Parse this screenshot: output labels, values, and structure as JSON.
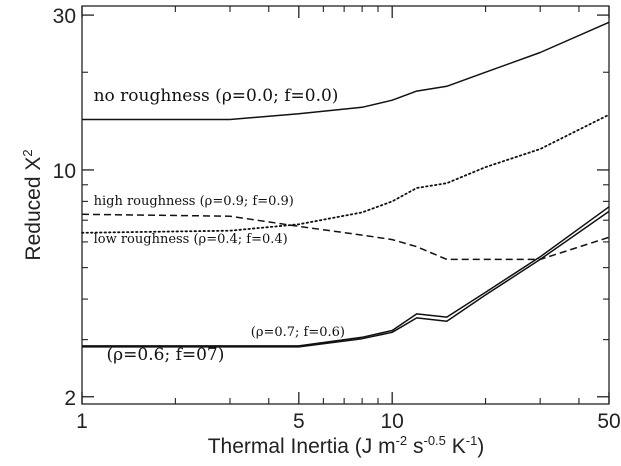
{
  "chart_data": {
    "type": "line",
    "title": "",
    "xlabel": "Thermal Inertia (J m",
    "xlabel_parts": {
      "base": "Thermal Inertia (J m",
      "sup1": "-2",
      "mid1": " s",
      "sup2": "-0.5",
      "mid2": " K",
      "sup3": "-1",
      "end": ")"
    },
    "ylabel_parts": {
      "base": "Reduced X",
      "sup": "2"
    },
    "x_scale": "log",
    "y_scale": "log",
    "xlim": [
      1,
      50
    ],
    "ylim": [
      1.9,
      32
    ],
    "x_ticks": [
      {
        "value": 1,
        "label": "1"
      },
      {
        "value": 5,
        "label": "5"
      },
      {
        "value": 10,
        "label": "10"
      },
      {
        "value": 50,
        "label": "50"
      }
    ],
    "x_minor_ticks": [
      2,
      3,
      4,
      6,
      7,
      8,
      9,
      20,
      30,
      40
    ],
    "y_ticks": [
      {
        "value": 2,
        "label": "2"
      },
      {
        "value": 10,
        "label": "10"
      },
      {
        "value": 30,
        "label": "30"
      }
    ],
    "y_minor_ticks": [
      3,
      4,
      5,
      6,
      7,
      8,
      9,
      20
    ],
    "grid": false,
    "series": [
      {
        "name": "no roughness (ρ=0.0; f=0.0)",
        "style": "solid",
        "x": [
          1,
          3,
          5,
          8,
          10,
          12,
          15,
          20,
          30,
          50
        ],
        "y": [
          14.3,
          14.3,
          14.9,
          15.6,
          16.4,
          17.5,
          18.1,
          20.0,
          23.0,
          28.5
        ]
      },
      {
        "name": "high roughness (ρ=0.9; f=0.9)",
        "style": "dashed",
        "x": [
          1,
          3,
          5,
          8,
          10,
          12,
          15,
          20,
          30,
          50
        ],
        "y": [
          7.3,
          7.2,
          6.7,
          6.3,
          6.1,
          5.8,
          5.3,
          5.3,
          5.3,
          6.2
        ]
      },
      {
        "name": "low roughness (ρ=0.4; f=0.4)",
        "style": "dotted",
        "x": [
          1,
          3,
          5,
          8,
          10,
          12,
          15,
          20,
          30,
          50
        ],
        "y": [
          6.4,
          6.5,
          6.8,
          7.4,
          8.0,
          8.8,
          9.1,
          10.2,
          11.6,
          14.8
        ]
      },
      {
        "name": "(ρ=0.7; f=0.6)",
        "style": "solid",
        "x": [
          1,
          3,
          5,
          8,
          10,
          12,
          15,
          20,
          30,
          50
        ],
        "y": [
          2.87,
          2.87,
          2.87,
          3.05,
          3.2,
          3.6,
          3.52,
          4.2,
          5.4,
          7.7
        ]
      },
      {
        "name": "(ρ=0.6; f=07)",
        "style": "solid",
        "x": [
          1,
          3,
          5,
          8,
          10,
          12,
          15,
          20,
          30,
          50
        ],
        "y": [
          2.85,
          2.85,
          2.85,
          3.02,
          3.16,
          3.5,
          3.42,
          4.12,
          5.3,
          7.45
        ]
      }
    ],
    "annotations": [
      {
        "text": "no roughness (ρ=0.0; f=0.0)",
        "x": 1.09,
        "y": 16.3,
        "size": "large"
      },
      {
        "text": "high roughness (ρ=0.9; f=0.9)",
        "x": 1.09,
        "y": 7.8,
        "size": "small"
      },
      {
        "text": "low roughness (ρ=0.4; f=0.4)",
        "x": 1.09,
        "y": 5.95,
        "size": "small"
      },
      {
        "text": "(ρ=0.7; f=0.6)",
        "x": 3.5,
        "y": 3.08,
        "size": "small"
      },
      {
        "text": "(ρ=0.6; f=07)",
        "x": 1.2,
        "y": 2.6,
        "size": "large"
      }
    ]
  }
}
